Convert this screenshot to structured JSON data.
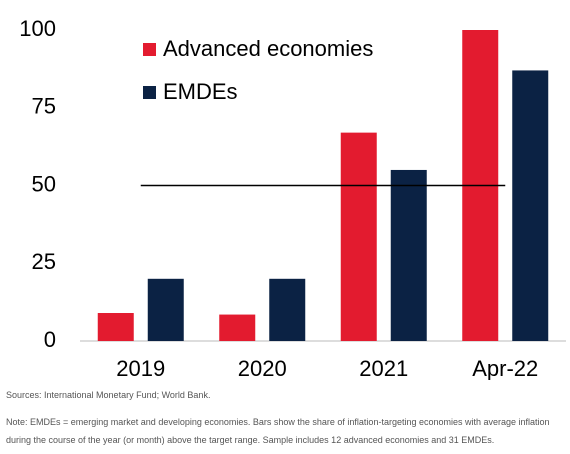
{
  "chart_data": {
    "type": "bar",
    "categories": [
      "2019",
      "2020",
      "2021",
      "Apr-22"
    ],
    "series": [
      {
        "name": "Advanced economies",
        "color": "#e31b2f",
        "values": [
          9,
          8.5,
          67,
          100
        ]
      },
      {
        "name": "EMDEs",
        "color": "#0b2244",
        "values": [
          20,
          20,
          55,
          87
        ]
      }
    ],
    "ylim": [
      0,
      100
    ],
    "yticks": [
      0,
      25,
      50,
      75,
      100
    ],
    "grid": false,
    "hline": 50,
    "legend": "top-left"
  },
  "sources": "Sources: International Monetary Fund; World Bank.",
  "note": "Note: EMDEs = emerging market and developing economies. Bars show the share of inflation-targeting economies with average inflation during the course of the year (or month) above the target range. Sample includes 12 advanced economies and 31 EMDEs."
}
